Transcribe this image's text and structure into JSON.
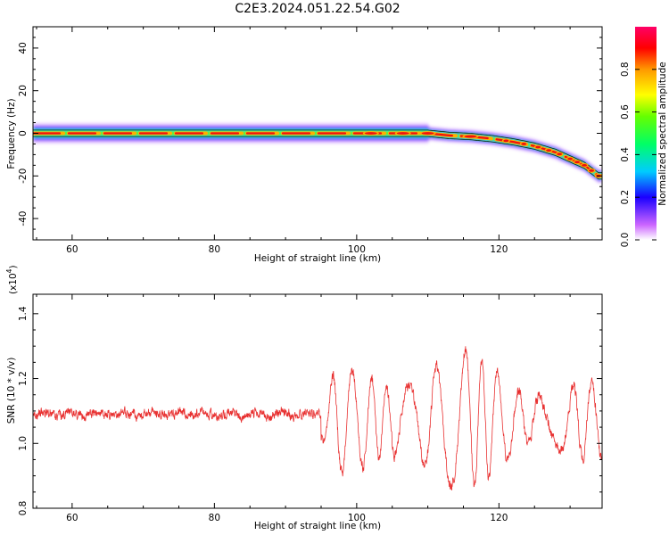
{
  "title": "C2E3.2024.051.22.54.G02",
  "chart_data": [
    {
      "type": "heatmap",
      "name": "spectrogram",
      "xlabel": "Height of straight line (km)",
      "ylabel": "Frequency (Hz)",
      "xlim": [
        54.5,
        134.5
      ],
      "ylim": [
        -50,
        50
      ],
      "xticks": [
        60,
        80,
        100,
        120
      ],
      "yticks": [
        -40,
        -20,
        0,
        20,
        40
      ],
      "ridge": {
        "x": [
          55,
          60,
          70,
          80,
          90,
          100,
          105,
          110,
          113,
          116,
          119,
          122,
          125,
          128,
          130,
          132,
          134
        ],
        "frequency": [
          0,
          0,
          0,
          0,
          0,
          0,
          0,
          0,
          -1,
          -1.5,
          -2.5,
          -4,
          -6,
          -9,
          -12,
          -15,
          -20
        ]
      },
      "colorbar": {
        "label": "Normalized spectral amplitude",
        "range": [
          0,
          1
        ],
        "ticks": [
          "0.0",
          "0.2",
          "0.4",
          "0.6",
          "0.8"
        ],
        "tick_values": [
          0,
          0.2,
          0.4,
          0.6,
          0.8
        ]
      }
    },
    {
      "type": "line",
      "name": "snr",
      "xlabel": "Height of straight line (km)",
      "ylabel": "SNR (10 * v/v)",
      "scale_label": "(x10",
      "scale_exponent": "4",
      "scale_suffix": ")",
      "xlim": [
        54.5,
        134.5
      ],
      "ylim": [
        0.8,
        1.46
      ],
      "xticks": [
        60,
        80,
        100,
        120
      ],
      "yticks": [
        "0.8",
        "1.0",
        "1.2",
        "1.4"
      ],
      "ytick_values": [
        0.8,
        1.0,
        1.2,
        1.4
      ],
      "color": "#e83030",
      "baseline": 1.09,
      "noise_amplitude_before_95km": 0.02,
      "envelope": {
        "x": [
          54.5,
          95,
          97,
          100,
          105,
          110,
          115,
          120,
          125,
          130,
          134.5
        ],
        "amplitude": [
          0.02,
          0.05,
          0.16,
          0.18,
          0.2,
          0.22,
          0.22,
          0.18,
          0.15,
          0.14,
          0.12
        ]
      }
    }
  ]
}
